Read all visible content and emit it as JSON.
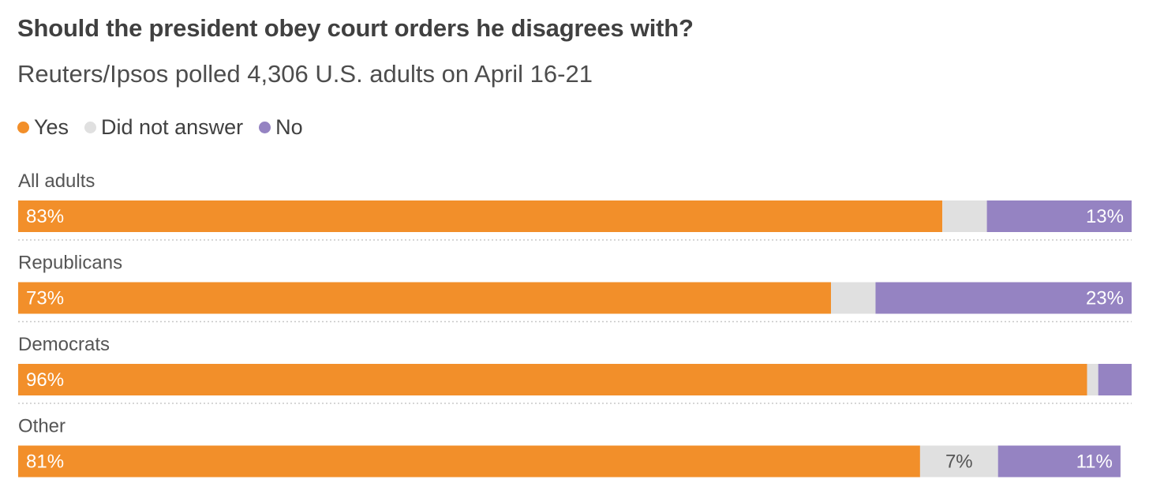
{
  "header": {
    "title": "Should the president obey court orders he disagrees with?",
    "subtitle": "Reuters/Ipsos polled 4,306 U.S. adults on April 16-21"
  },
  "legend": [
    {
      "label": "Yes",
      "color": "#f28f2a"
    },
    {
      "label": "Did not answer",
      "color": "#e0e0e0"
    },
    {
      "label": "No",
      "color": "#9583c2"
    }
  ],
  "chart_data": {
    "type": "bar",
    "orientation": "horizontal",
    "stacked": true,
    "categories": [
      "All adults",
      "Republicans",
      "Democrats",
      "Other"
    ],
    "series": [
      {
        "name": "Yes",
        "values": [
          83,
          73,
          96,
          81
        ],
        "labels": [
          "83%",
          "73%",
          "96%",
          "81%"
        ],
        "color": "#f28f2a"
      },
      {
        "name": "Did not answer",
        "values": [
          4,
          4,
          1,
          7
        ],
        "labels": [
          "",
          "",
          "",
          "7%"
        ],
        "color": "#e0e0e0"
      },
      {
        "name": "No",
        "values": [
          13,
          23,
          3,
          11
        ],
        "labels": [
          "13%",
          "23%",
          "",
          "11%"
        ],
        "color": "#9583c2"
      }
    ],
    "xlim": [
      0,
      100
    ],
    "unit": "%",
    "legend_position": "top-left",
    "grid": false
  }
}
